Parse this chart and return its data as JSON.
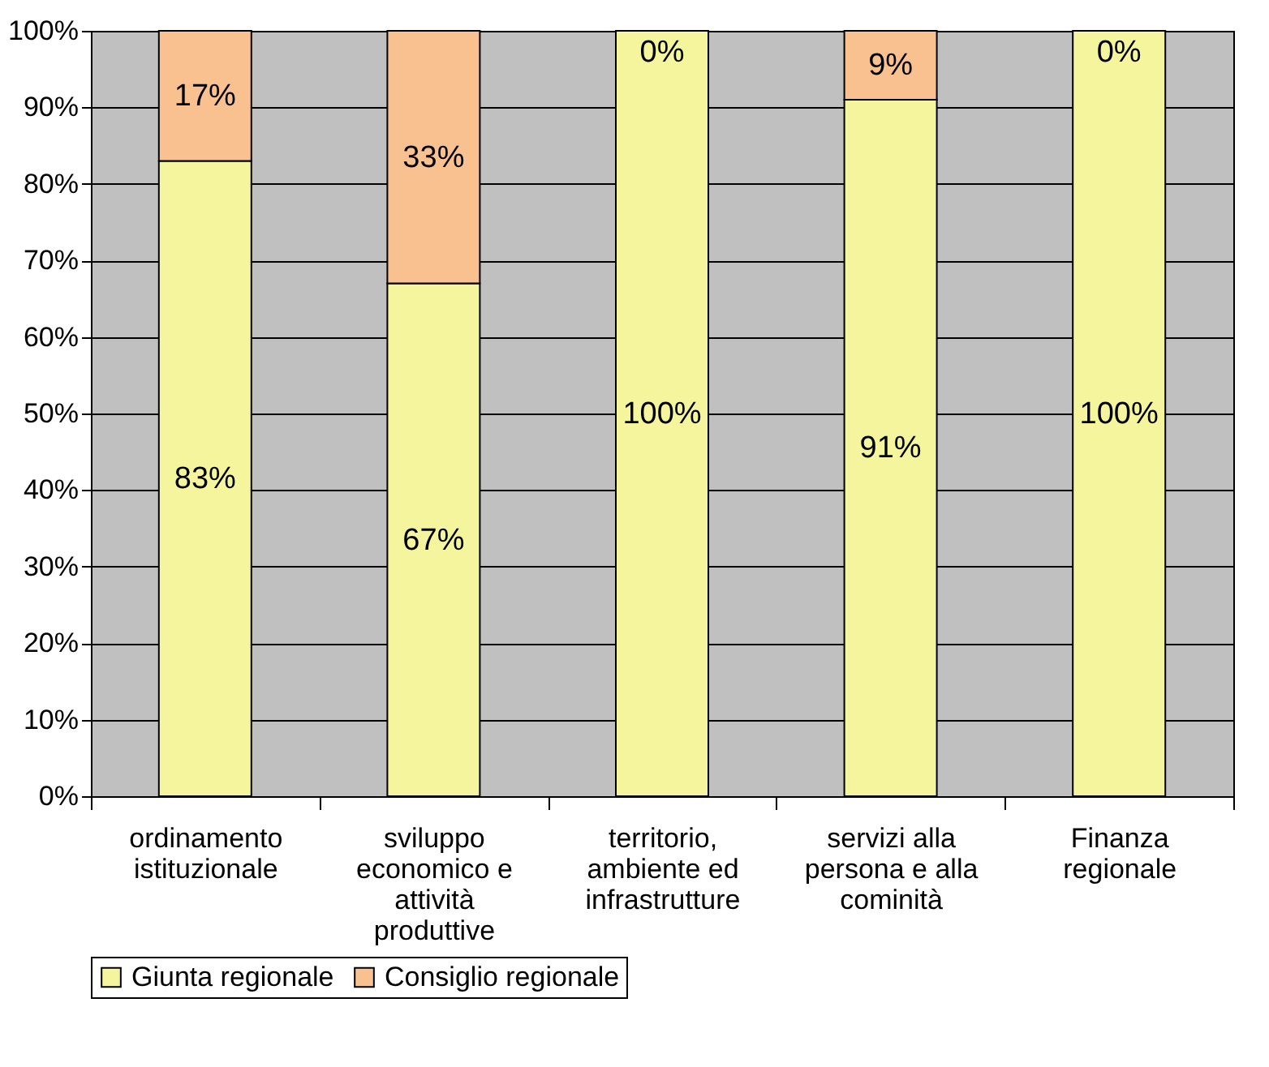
{
  "chart_data": {
    "type": "bar",
    "stacked": true,
    "categories": [
      "ordinamento\nistituzionale",
      "sviluppo\neconomico e\nattività\nproduttive",
      "territorio,\nambiente ed\ninfrastrutture",
      "servizi alla\npersona e alla\ncominità",
      "Finanza\nregionale"
    ],
    "series": [
      {
        "name": "Giunta regionale",
        "color": "#f5f59e",
        "values": [
          83,
          67,
          100,
          91,
          100
        ],
        "value_labels": [
          "83%",
          "67%",
          "100%",
          "91%",
          "100%"
        ]
      },
      {
        "name": "Consiglio regionale",
        "color": "#f9c090",
        "values": [
          17,
          33,
          0,
          9,
          0
        ],
        "value_labels": [
          "17%",
          "33%",
          "0%",
          "9%",
          "0%"
        ]
      }
    ],
    "ylim": [
      0,
      100
    ],
    "yticks": [
      {
        "value": 0,
        "label": "0%"
      },
      {
        "value": 10,
        "label": "10%"
      },
      {
        "value": 20,
        "label": "20%"
      },
      {
        "value": 30,
        "label": "30%"
      },
      {
        "value": 40,
        "label": "40%"
      },
      {
        "value": 50,
        "label": "50%"
      },
      {
        "value": 60,
        "label": "60%"
      },
      {
        "value": 70,
        "label": "70%"
      },
      {
        "value": 80,
        "label": "80%"
      },
      {
        "value": 90,
        "label": "90%"
      },
      {
        "value": 100,
        "label": "100%"
      }
    ],
    "grid": "y",
    "legend": "bottom"
  }
}
